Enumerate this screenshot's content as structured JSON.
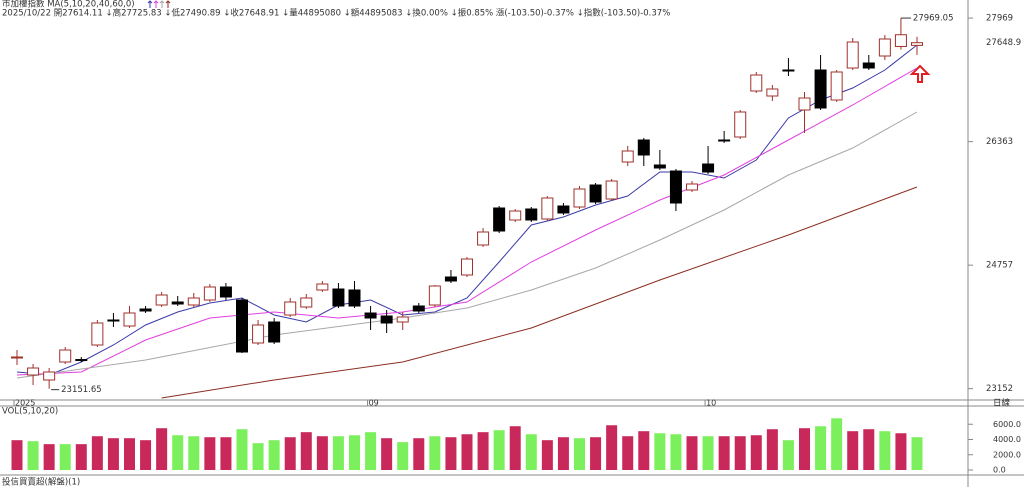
{
  "header": {
    "title": "市加權指數 MA(5,10,20,40,60,0)",
    "info": "2025/10/22 開27614.11 ↓高27725.83 ↓低27490.89 ↓收27648.91 ↓量44895080 ↓額44895083 ↓換0.00% ↓振0.85% 漲(-103.50)-0.37% ↓指數(-103.50)-0.37%"
  },
  "chart_data": [
    {
      "type": "candlestick",
      "period": "日線",
      "categories": [
        "2025",
        null,
        null,
        null,
        null,
        null,
        null,
        null,
        null,
        null,
        null,
        null,
        null,
        null,
        null,
        null,
        null,
        null,
        null,
        null,
        null,
        null,
        "09",
        null,
        null,
        null,
        null,
        null,
        null,
        null,
        null,
        null,
        null,
        null,
        null,
        null,
        null,
        null,
        null,
        null,
        null,
        null,
        null,
        "10",
        null,
        null,
        null,
        null,
        null,
        null,
        null,
        null,
        null,
        null,
        null,
        null,
        null
      ],
      "open": [
        23563,
        23329,
        23264,
        23498,
        23530,
        23719,
        24044,
        23966,
        24187,
        24239,
        24278,
        24239,
        24304,
        24473,
        24304,
        23745,
        24018,
        24109,
        24213,
        24434,
        24447,
        24434,
        24135,
        24096,
        24018,
        24226,
        24239,
        24603,
        24629,
        25019,
        25500,
        25344,
        25487,
        25357,
        25526,
        25513,
        25799,
        25617,
        26098,
        26384,
        26059,
        25981,
        25734,
        26072,
        26384,
        26423,
        27021,
        26956,
        27294,
        26774,
        27294,
        26904,
        27320,
        27385,
        27476,
        27600,
        27614.11
      ],
      "high": [
        23654,
        23472,
        23420,
        23693,
        23563,
        24044,
        24135,
        24226,
        24226,
        24408,
        24356,
        24395,
        24512,
        24525,
        24330,
        24044,
        24070,
        24330,
        24382,
        24551,
        24525,
        24551,
        24226,
        24174,
        24148,
        24265,
        24499,
        24694,
        24863,
        25240,
        25526,
        25487,
        25513,
        25656,
        25565,
        25786,
        25825,
        25877,
        26306,
        26410,
        26254,
        26007,
        25851,
        26306,
        26501,
        26774,
        27268,
        27099,
        27450,
        27008,
        27489,
        27294,
        27710,
        27489,
        27749,
        27969.05,
        27725.83
      ],
      "low": [
        23459,
        23199,
        23151.65,
        23472,
        23498,
        23693,
        23953,
        23940,
        24135,
        24213,
        24226,
        24213,
        24278,
        24304,
        23615,
        23719,
        23732,
        24083,
        24187,
        24408,
        24200,
        24200,
        23914,
        23875,
        23914,
        24135,
        24213,
        24525,
        24603,
        24993,
        25175,
        25318,
        25318,
        25331,
        25409,
        25487,
        25552,
        25591,
        26046,
        26046,
        25994,
        25461,
        25708,
        25942,
        26345,
        26397,
        26995,
        26891,
        27216,
        26475,
        26774,
        26878,
        27294,
        27294,
        27424,
        27560,
        27490.89
      ],
      "close": [
        23563,
        23420,
        23368,
        23654,
        23524,
        24005,
        24031,
        24135,
        24161,
        24369,
        24252,
        24330,
        24473,
        24343,
        23628,
        23979,
        23758,
        24278,
        24330,
        24512,
        24226,
        24226,
        24070,
        24005,
        24083,
        24161,
        24486,
        24551,
        24837,
        25188,
        25201,
        25461,
        25344,
        25630,
        25435,
        25747,
        25578,
        25851,
        26241,
        26189,
        26020,
        25565,
        25812,
        25968,
        26371,
        26748,
        27229,
        27047,
        27281,
        26930,
        26800,
        27268,
        27658,
        27320,
        27697,
        27752.41,
        27648.91
      ],
      "up_color": "#a0302a",
      "down_color": "#000000",
      "last_price_label": "27648.9",
      "last_price_color": "#e02020",
      "ylim": [
        23004,
        28100
      ],
      "yticks": [
        27969,
        26363,
        24757,
        23152
      ],
      "series": [
        {
          "color": "#3a3aa8",
          "x": [
            0,
            2,
            4,
            6,
            8,
            10,
            12,
            14,
            16,
            18,
            20,
            22,
            24,
            26,
            28,
            30,
            32,
            34,
            36,
            38,
            40,
            42,
            44,
            46,
            48,
            50,
            52,
            54,
            56
          ],
          "values": [
            23368,
            23329,
            23498,
            23719,
            23979,
            24148,
            24265,
            24330,
            24109,
            24018,
            24239,
            24304,
            24109,
            24148,
            24330,
            24798,
            25279,
            25383,
            25539,
            25656,
            25968,
            25968,
            25890,
            26124,
            26670,
            26904,
            27060,
            27294,
            27619
          ]
        },
        {
          "color": "#e040e0",
          "x": [
            0,
            4,
            8,
            12,
            16,
            20,
            24,
            28,
            32,
            36,
            40,
            44,
            48,
            52,
            56
          ],
          "values": [
            23329,
            23368,
            23784,
            24070,
            24148,
            24070,
            24148,
            24278,
            24798,
            25214,
            25604,
            25929,
            26384,
            26839,
            27320
          ]
        },
        {
          "color": "#a8a8a8",
          "x": [
            0,
            8,
            16,
            24,
            28,
            32,
            36,
            40,
            44,
            48,
            52,
            56
          ],
          "values": [
            23290,
            23524,
            23849,
            24070,
            24200,
            24434,
            24720,
            25084,
            25474,
            25929,
            26280,
            26748
          ]
        },
        {
          "color": "#8b2e20",
          "x": [
            9,
            16,
            24,
            32,
            40,
            48,
            56
          ],
          "values": [
            23030,
            23264,
            23498,
            23940,
            24564,
            25149,
            25773
          ]
        }
      ]
    },
    {
      "type": "bar",
      "title": "VOL(5,10,20)",
      "values": [
        3910,
        3780,
        3390,
        3390,
        3390,
        4430,
        4170,
        4170,
        3910,
        5480,
        4560,
        4430,
        4300,
        4300,
        5350,
        3520,
        3910,
        4300,
        4960,
        4430,
        4430,
        4560,
        4960,
        4170,
        3650,
        4170,
        4430,
        4300,
        4690,
        4960,
        5220,
        5740,
        4690,
        3910,
        4300,
        4170,
        4300,
        5870,
        4430,
        5090,
        4820,
        4690,
        4430,
        4430,
        4430,
        4430,
        4560,
        5350,
        3910,
        5480,
        5740,
        6780,
        5090,
        5350,
        5090,
        4820,
        4300
      ],
      "colors": [
        "#c8285a",
        "#7cf05c",
        "#c8285a",
        "#7cf05c",
        "#c8285a",
        "#c8285a",
        "#c8285a",
        "#c8285a",
        "#c8285a",
        "#c8285a",
        "#7cf05c",
        "#7cf05c",
        "#c8285a",
        "#c8285a",
        "#7cf05c",
        "#7cf05c",
        "#7cf05c",
        "#c8285a",
        "#c8285a",
        "#c8285a",
        "#7cf05c",
        "#7cf05c",
        "#7cf05c",
        "#c8285a",
        "#7cf05c",
        "#c8285a",
        "#7cf05c",
        "#c8285a",
        "#c8285a",
        "#c8285a",
        "#7cf05c",
        "#c8285a",
        "#7cf05c",
        "#c8285a",
        "#c8285a",
        "#7cf05c",
        "#c8285a",
        "#c8285a",
        "#c8285a",
        "#c8285a",
        "#7cf05c",
        "#7cf05c",
        "#c8285a",
        "#7cf05c",
        "#c8285a",
        "#c8285a",
        "#c8285a",
        "#c8285a",
        "#7cf05c",
        "#c8285a",
        "#7cf05c",
        "#7cf05c",
        "#c8285a",
        "#c8285a",
        "#7cf05c",
        "#c8285a",
        "#7cf05c"
      ],
      "ylim": [
        0,
        8000
      ],
      "yticks": [
        {
          "value": 6000,
          "label": "6000.0"
        },
        {
          "value": 4000,
          "label": "4000.0"
        },
        {
          "value": 2000,
          "label": "2000.0"
        },
        {
          "value": 0,
          "label": "0.0"
        }
      ]
    }
  ],
  "footer": "投信買賣超(解盤)(1)"
}
